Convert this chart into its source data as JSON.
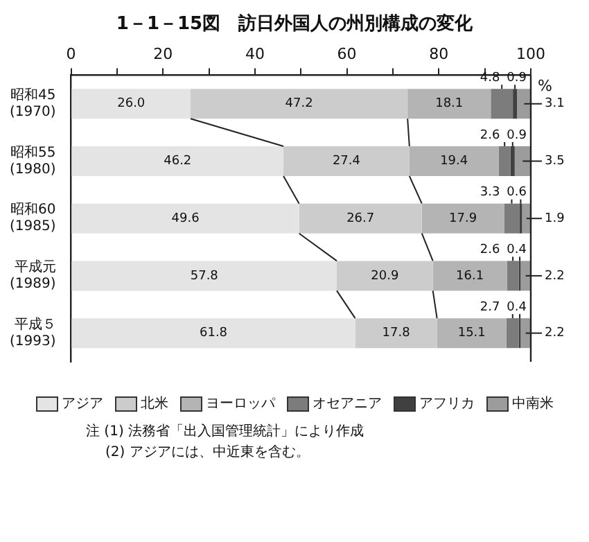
{
  "chart_data": {
    "type": "bar",
    "orientation": "horizontal",
    "stacked": true,
    "title": "1－1－15図　訪日外国人の州別構成の変化",
    "xlabel": "%",
    "categories": [
      "昭和45\n(1970)",
      "昭和55\n(1980)",
      "昭和60\n(1985)",
      "平成元\n(1989)",
      "平成５\n(1993)"
    ],
    "series": [
      {
        "name": "アジア",
        "color": "#e4e4e4",
        "values": [
          26.0,
          46.2,
          49.6,
          57.8,
          61.8
        ]
      },
      {
        "name": "北米",
        "color": "#cccccc",
        "values": [
          47.2,
          27.4,
          26.7,
          20.9,
          17.8
        ]
      },
      {
        "name": "ヨーロッパ",
        "color": "#b4b4b4",
        "values": [
          18.1,
          19.4,
          17.9,
          16.1,
          15.1
        ]
      },
      {
        "name": "オセアニア",
        "color": "#7c7c7c",
        "values": [
          4.8,
          2.6,
          3.3,
          2.6,
          2.7
        ]
      },
      {
        "name": "アフリカ",
        "color": "#404040",
        "values": [
          0.9,
          0.9,
          0.6,
          0.4,
          0.4
        ]
      },
      {
        "name": "中南米",
        "color": "#9c9c9c",
        "values": [
          3.1,
          3.5,
          1.9,
          2.2,
          2.2
        ]
      }
    ],
    "xlim": [
      0,
      100
    ],
    "xticks": [
      0,
      {
        "value": 10,
        "label": null
      },
      20,
      {
        "value": 30,
        "label": null
      },
      40,
      {
        "value": 50,
        "label": null
      },
      60,
      {
        "value": 70,
        "label": null
      },
      80,
      {
        "value": 90,
        "label": null
      },
      100
    ],
    "grid": false,
    "legend": "bottom",
    "value_labels": [
      [
        "26.0",
        "46.2",
        "49.6",
        "57.8",
        "61.8"
      ],
      [
        "47.2",
        "27.4",
        "26.7",
        "20.9",
        "17.8"
      ],
      [
        "18.1",
        "19.4",
        "17.9",
        "16.1",
        "15.1"
      ],
      [
        "4.8",
        "2.6",
        "3.3",
        "2.6",
        "2.7"
      ],
      [
        "0.9",
        "0.9",
        "0.6",
        "0.4",
        "0.4"
      ],
      [
        "3.1",
        "3.5",
        "1.9",
        "2.2",
        "2.2"
      ]
    ],
    "annotations": [
      "注 (1) 法務省「出入国管理統計」により作成",
      "(2) アジアには、中近東を含む。"
    ]
  }
}
